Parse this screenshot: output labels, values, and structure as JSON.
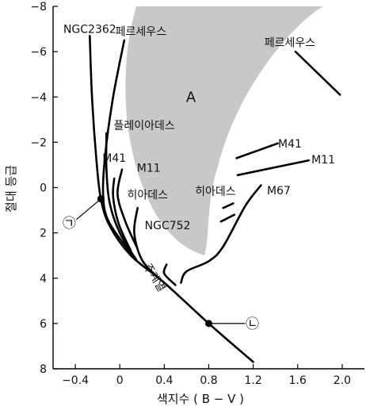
{
  "chart_data": {
    "type": "line",
    "title": "",
    "xlabel": "색지수 ( B − V )",
    "ylabel": "절대 등급",
    "xlim": [
      -0.6,
      2.2
    ],
    "ylim": [
      8,
      -8
    ],
    "xticks": [
      -0.4,
      0,
      0.4,
      0.8,
      1.2,
      1.6,
      2.0
    ],
    "xtick_labels": [
      "−0.4",
      "0",
      "0.4",
      "0.8",
      "1.2",
      "1.6",
      "2.0"
    ],
    "yticks": [
      -8,
      -6,
      -4,
      -2,
      0,
      2,
      4,
      6,
      8
    ],
    "ytick_labels": [
      "−8",
      "−6",
      "−4",
      "−2",
      "0",
      "2",
      "4",
      "6",
      "8"
    ],
    "region_label": "A",
    "main_sequence_label": "주계열",
    "series": [
      {
        "name": "NGC2362",
        "points": [
          [
            -0.27,
            -6.7
          ],
          [
            -0.25,
            -4.0
          ],
          [
            -0.21,
            -1.2
          ],
          [
            -0.17,
            0.5
          ],
          [
            -0.09,
            1.7
          ],
          [
            0.1,
            3.0
          ],
          [
            0.4,
            4.2
          ],
          [
            0.8,
            6.0
          ],
          [
            1.2,
            7.7
          ]
        ]
      },
      {
        "name": "페르세우스",
        "points": [
          [
            0.04,
            -6.5
          ],
          [
            -0.06,
            -4.0
          ],
          [
            -0.13,
            -1.5
          ],
          [
            -0.15,
            0.3
          ],
          [
            -0.1,
            1.5
          ],
          [
            0.1,
            2.9
          ]
        ]
      },
      {
        "name": "플레이아데스",
        "points": [
          [
            -0.12,
            -2.4
          ],
          [
            -0.12,
            -0.8
          ],
          [
            -0.09,
            0.7
          ],
          [
            0.0,
            2.0
          ],
          [
            0.15,
            3.2
          ]
        ]
      },
      {
        "name": "M41",
        "points": [
          [
            -0.05,
            -0.4
          ],
          [
            -0.06,
            0.4
          ],
          [
            -0.01,
            1.6
          ],
          [
            0.1,
            2.8
          ]
        ]
      },
      {
        "name": "M11",
        "points": [
          [
            0.02,
            -0.8
          ],
          [
            -0.02,
            0.3
          ],
          [
            0.05,
            1.5
          ],
          [
            0.15,
            2.6
          ]
        ]
      },
      {
        "name": "히아데스",
        "points": [
          [
            0.16,
            0.9
          ],
          [
            0.13,
            2.0
          ],
          [
            0.2,
            3.2
          ],
          [
            0.35,
            4.0
          ]
        ]
      },
      {
        "name": "NGC752",
        "points": [
          [
            0.42,
            3.4
          ],
          [
            0.4,
            3.8
          ],
          [
            0.5,
            4.3
          ]
        ]
      },
      {
        "name": "M67",
        "points": [
          [
            1.27,
            -0.1
          ],
          [
            1.13,
            0.8
          ],
          [
            0.93,
            2.6
          ],
          [
            0.8,
            3.25
          ],
          [
            0.6,
            3.7
          ],
          [
            0.55,
            4.2
          ]
        ]
      },
      {
        "name": "M41 거성",
        "points": [
          [
            1.05,
            -1.3
          ],
          [
            1.42,
            -1.95
          ]
        ]
      },
      {
        "name": "M11 거성",
        "points": [
          [
            1.06,
            -0.55
          ],
          [
            1.7,
            -1.2
          ]
        ]
      },
      {
        "name": "페르세우스 초거성",
        "points": [
          [
            1.58,
            -6.0
          ],
          [
            1.98,
            -4.1
          ]
        ]
      },
      {
        "name": "히아데스 거성",
        "points": [
          [
            0.93,
            0.9
          ],
          [
            1.02,
            0.7
          ]
        ]
      },
      {
        "name": "NGC752 거성",
        "points": [
          [
            0.91,
            1.5
          ],
          [
            1.03,
            1.2
          ]
        ]
      }
    ],
    "labels": [
      {
        "text": "NGC2362",
        "x": -0.27,
        "y": -7.0
      },
      {
        "text": "페르세우스",
        "x": 0.19,
        "y": -6.9
      },
      {
        "text": "페르세우스",
        "x": 1.53,
        "y": -6.4
      },
      {
        "text": "A",
        "x": 0.64,
        "y": -4.0
      },
      {
        "text": "플레이아데스",
        "x": 0.22,
        "y": -2.75
      },
      {
        "text": "M41",
        "x": -0.05,
        "y": -1.32
      },
      {
        "text": "M11",
        "x": 0.26,
        "y": -0.88
      },
      {
        "text": "M41",
        "x": 1.53,
        "y": -1.95
      },
      {
        "text": "M11",
        "x": 1.83,
        "y": -1.24
      },
      {
        "text": "히아데스",
        "x": 0.25,
        "y": 0.32
      },
      {
        "text": "히아데스",
        "x": 0.86,
        "y": 0.16
      },
      {
        "text": "M67",
        "x": 1.43,
        "y": 0.13
      },
      {
        "text": "NGC752",
        "x": 0.43,
        "y": 1.67
      }
    ],
    "markers": [
      {
        "label": "㉠",
        "x": -0.17,
        "y": 0.5
      },
      {
        "label": "㉡",
        "x": 0.8,
        "y": 6.0
      }
    ]
  }
}
